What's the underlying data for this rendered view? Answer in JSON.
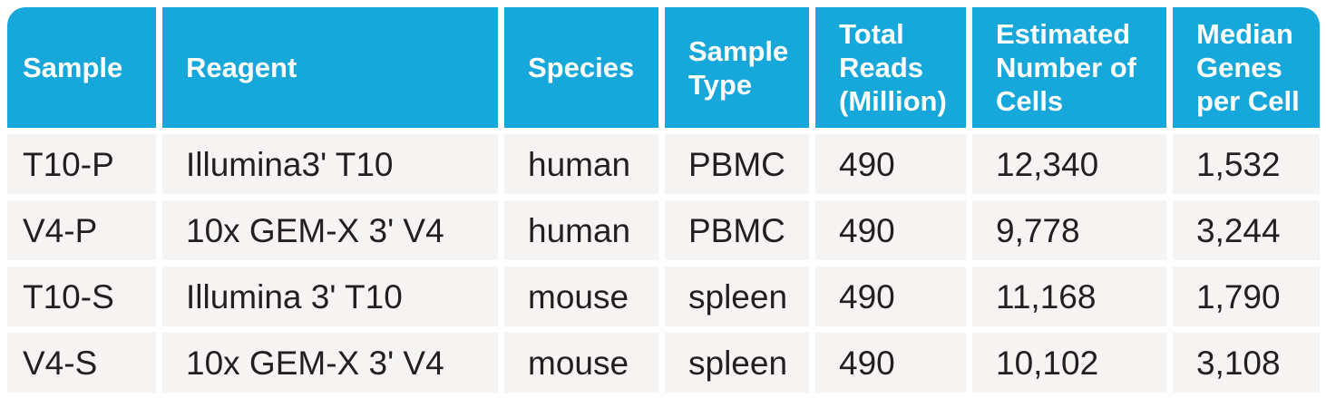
{
  "colors": {
    "header_bg": "#16a8da",
    "header_text": "#ffffff",
    "row_bg": "#f5f4f3",
    "body_text": "#231f20",
    "gutter": "#ffffff"
  },
  "table": {
    "columns": [
      {
        "label": "Sample"
      },
      {
        "label": "Reagent"
      },
      {
        "label": "Species"
      },
      {
        "label": "Sample Type"
      },
      {
        "label": "Total Reads (Million)"
      },
      {
        "label": "Estimated Number of Cells"
      },
      {
        "label": "Median Genes per Cell"
      }
    ],
    "rows": [
      [
        "T10-P",
        "Illumina3' T10",
        "human",
        "PBMC",
        "490",
        "12,340",
        "1,532"
      ],
      [
        "V4-P",
        "10x GEM-X 3' V4",
        "human",
        "PBMC",
        "490",
        "9,778",
        "3,244"
      ],
      [
        "T10-S",
        "Illumina 3' T10",
        "mouse",
        "spleen",
        "490",
        "11,168",
        "1,790"
      ],
      [
        "V4-S",
        "10x GEM-X 3' V4",
        "mouse",
        "spleen",
        "490",
        "10,102",
        "3,108"
      ]
    ]
  }
}
